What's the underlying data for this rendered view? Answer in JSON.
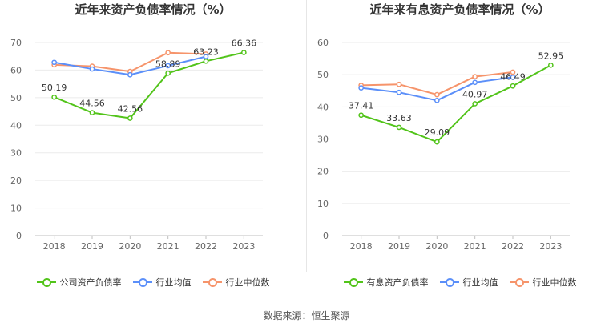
{
  "chart_data": [
    {
      "type": "line",
      "title": "近年来资产负债率情况（%）",
      "categories": [
        "2018",
        "2019",
        "2020",
        "2021",
        "2022",
        "2023"
      ],
      "ylim": [
        0,
        70
      ],
      "yticks": [
        0,
        10,
        20,
        30,
        40,
        50,
        60,
        70
      ],
      "grid": true,
      "legend_position": "bottom",
      "series": [
        {
          "name": "公司资产负债率",
          "color": "#52c41a",
          "values": [
            50.19,
            44.56,
            42.56,
            58.89,
            63.23,
            66.36
          ],
          "labels": true
        },
        {
          "name": "行业均值",
          "color": "#5b8ff9",
          "values": [
            62.8,
            60.4,
            58.3,
            61.6,
            64.9,
            null
          ],
          "labels": false
        },
        {
          "name": "行业中位数",
          "color": "#f6946b",
          "values": [
            61.9,
            61.4,
            59.5,
            66.3,
            65.8,
            null
          ],
          "labels": false
        }
      ]
    },
    {
      "type": "line",
      "title": "近年来有息资产负债率情况（%）",
      "categories": [
        "2018",
        "2019",
        "2020",
        "2021",
        "2022",
        "2023"
      ],
      "ylim": [
        0,
        60
      ],
      "yticks": [
        0,
        10,
        20,
        30,
        40,
        50,
        60
      ],
      "grid": true,
      "legend_position": "bottom",
      "series": [
        {
          "name": "有息资产负债率",
          "color": "#52c41a",
          "values": [
            37.41,
            33.63,
            29.09,
            40.97,
            46.49,
            52.95
          ],
          "labels": true
        },
        {
          "name": "行业均值",
          "color": "#5b8ff9",
          "values": [
            45.9,
            44.5,
            42.0,
            47.6,
            49.2,
            null
          ],
          "labels": false
        },
        {
          "name": "行业中位数",
          "color": "#f6946b",
          "values": [
            46.7,
            47.0,
            43.8,
            49.4,
            50.8,
            null
          ],
          "labels": false
        }
      ]
    }
  ],
  "footer": {
    "source": "数据来源：恒生聚源"
  }
}
